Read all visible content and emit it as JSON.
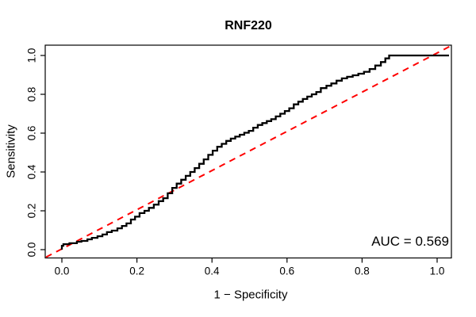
{
  "title": "RNF220",
  "axes": {
    "xlabel": "1 − Specificity",
    "ylabel": "Sensitivity",
    "x_tick_labels": [
      "0.0",
      "0.2",
      "0.4",
      "0.6",
      "0.8",
      "1.0"
    ],
    "y_tick_labels": [
      "0.0",
      "0.2",
      "0.4",
      "0.6",
      "0.8",
      "1.0"
    ],
    "x_tick_values": [
      0,
      0.2,
      0.4,
      0.6,
      0.8,
      1.0
    ],
    "y_tick_values": [
      0,
      0.2,
      0.4,
      0.6,
      0.8,
      1.0
    ]
  },
  "annotation": {
    "auc_label": "AUC = 0.569"
  },
  "colors": {
    "roc_curve": "#000000",
    "diagonal": "#ff0000",
    "box": "#000000"
  },
  "chart_data": {
    "type": "line",
    "title": "RNF220",
    "xlabel": "1 − Specificity",
    "ylabel": "Sensitivity",
    "xlim": [
      0,
      1
    ],
    "ylim": [
      0,
      1
    ],
    "grid": false,
    "auc": 0.569,
    "diagonal_reference": {
      "from": [
        0,
        0
      ],
      "to": [
        1,
        1
      ],
      "style": "dashed",
      "color": "#ff0000"
    },
    "roc_points": [
      [
        0.0,
        0.0
      ],
      [
        0.004,
        0.02
      ],
      [
        0.02,
        0.028
      ],
      [
        0.04,
        0.033
      ],
      [
        0.052,
        0.041
      ],
      [
        0.068,
        0.045
      ],
      [
        0.08,
        0.053
      ],
      [
        0.095,
        0.061
      ],
      [
        0.108,
        0.069
      ],
      [
        0.12,
        0.078
      ],
      [
        0.133,
        0.09
      ],
      [
        0.148,
        0.098
      ],
      [
        0.16,
        0.11
      ],
      [
        0.172,
        0.122
      ],
      [
        0.184,
        0.135
      ],
      [
        0.195,
        0.155
      ],
      [
        0.207,
        0.17
      ],
      [
        0.22,
        0.188
      ],
      [
        0.232,
        0.2
      ],
      [
        0.245,
        0.215
      ],
      [
        0.258,
        0.232
      ],
      [
        0.27,
        0.25
      ],
      [
        0.282,
        0.265
      ],
      [
        0.294,
        0.29
      ],
      [
        0.306,
        0.318
      ],
      [
        0.318,
        0.34
      ],
      [
        0.33,
        0.36
      ],
      [
        0.342,
        0.38
      ],
      [
        0.354,
        0.4
      ],
      [
        0.366,
        0.42
      ],
      [
        0.378,
        0.442
      ],
      [
        0.39,
        0.465
      ],
      [
        0.402,
        0.488
      ],
      [
        0.414,
        0.51
      ],
      [
        0.426,
        0.53
      ],
      [
        0.438,
        0.545
      ],
      [
        0.45,
        0.56
      ],
      [
        0.462,
        0.572
      ],
      [
        0.474,
        0.582
      ],
      [
        0.486,
        0.592
      ],
      [
        0.498,
        0.602
      ],
      [
        0.51,
        0.612
      ],
      [
        0.522,
        0.628
      ],
      [
        0.534,
        0.642
      ],
      [
        0.546,
        0.652
      ],
      [
        0.558,
        0.662
      ],
      [
        0.57,
        0.672
      ],
      [
        0.582,
        0.686
      ],
      [
        0.594,
        0.7
      ],
      [
        0.606,
        0.714
      ],
      [
        0.618,
        0.728
      ],
      [
        0.63,
        0.748
      ],
      [
        0.642,
        0.762
      ],
      [
        0.654,
        0.776
      ],
      [
        0.666,
        0.788
      ],
      [
        0.678,
        0.8
      ],
      [
        0.69,
        0.812
      ],
      [
        0.705,
        0.832
      ],
      [
        0.718,
        0.844
      ],
      [
        0.732,
        0.856
      ],
      [
        0.746,
        0.87
      ],
      [
        0.76,
        0.882
      ],
      [
        0.775,
        0.89
      ],
      [
        0.79,
        0.898
      ],
      [
        0.805,
        0.906
      ],
      [
        0.82,
        0.916
      ],
      [
        0.835,
        0.93
      ],
      [
        0.85,
        0.948
      ],
      [
        0.862,
        0.966
      ],
      [
        0.872,
        0.985
      ],
      [
        0.878,
        1.0
      ],
      [
        1.0,
        1.0
      ]
    ]
  }
}
